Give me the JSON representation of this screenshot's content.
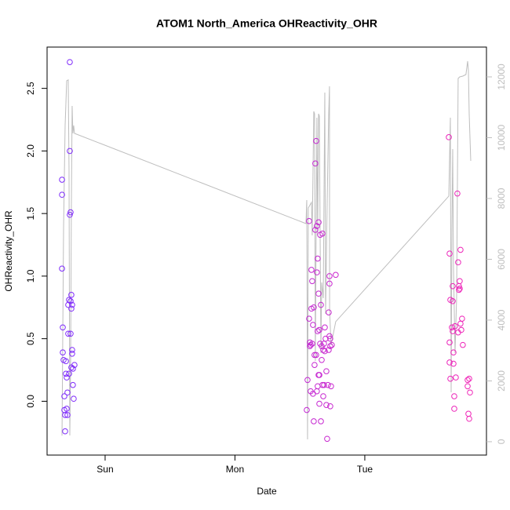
{
  "chart_data": {
    "type": "scatter",
    "title": "ATOM1 North_America OHReactivity_OHR",
    "xlabel": "Date",
    "ylabel": "OHReactivity_OHR",
    "xlim": [
      -0.447,
      2.937
    ],
    "xticks": [
      {
        "value": 0,
        "label": "Sun"
      },
      {
        "value": 1,
        "label": "Mon"
      },
      {
        "value": 2,
        "label": "Tue"
      }
    ],
    "ylim": [
      -0.43,
      2.83
    ],
    "yticks": [
      {
        "value": 0,
        "label": "0.0"
      },
      0.5,
      {
        "value": 1,
        "label": "1.0"
      },
      1.5,
      {
        "value": 2,
        "label": "2.0"
      },
      2.5
    ],
    "y2lim": [
      -440,
      12980
    ],
    "y2ticks": [
      0,
      2000,
      4000,
      6000,
      8000,
      10000,
      12000
    ],
    "y2_color": "#bebebe",
    "color_scale": [
      "#7a2cff",
      "#f524b4"
    ],
    "series": [
      {
        "type": "scatter",
        "x": [
          -0.332,
          -0.332,
          -0.332,
          -0.326,
          -0.326,
          -0.32,
          -0.314,
          -0.314,
          -0.308,
          -0.308,
          -0.302,
          -0.302,
          -0.296,
          -0.296,
          -0.29,
          -0.29,
          -0.284,
          -0.284,
          -0.278,
          -0.278,
          -0.272,
          -0.272,
          -0.272,
          -0.266,
          -0.266,
          -0.266,
          -0.26,
          -0.26,
          -0.26,
          -0.254,
          -0.254,
          -0.254,
          -0.248,
          -0.248,
          -0.242,
          -0.236,
          1.553,
          1.559,
          1.571,
          1.571,
          1.577,
          1.577,
          1.583,
          1.583,
          1.589,
          1.589,
          1.595,
          1.595,
          1.601,
          1.601,
          1.607,
          1.607,
          1.613,
          1.613,
          1.619,
          1.619,
          1.625,
          1.625,
          1.631,
          1.631,
          1.631,
          1.637,
          1.637,
          1.637,
          1.644,
          1.644,
          1.644,
          1.65,
          1.65,
          1.65,
          1.656,
          1.656,
          1.662,
          1.662,
          1.668,
          1.668,
          1.674,
          1.674,
          1.68,
          1.68,
          1.686,
          1.686,
          1.692,
          1.692,
          1.698,
          1.704,
          1.704,
          1.71,
          1.716,
          1.722,
          1.722,
          1.728,
          1.728,
          1.728,
          1.734,
          1.734,
          1.74,
          1.734,
          1.776,
          1.746,
          2.647,
          2.653,
          2.653,
          2.653,
          2.659,
          2.659,
          2.671,
          2.677,
          2.677,
          2.677,
          2.683,
          2.683,
          2.689,
          2.689,
          2.695,
          2.701,
          2.713,
          2.719,
          2.719,
          2.725,
          2.725,
          2.731,
          2.731,
          2.737,
          2.737,
          2.743,
          2.749,
          2.755,
          2.792,
          2.792,
          2.798,
          2.804,
          2.804,
          2.81
        ],
        "values": [
          1.77,
          1.65,
          1.06,
          0.59,
          0.39,
          0.33,
          -0.07,
          0.04,
          -0.11,
          -0.24,
          0.32,
          0.22,
          0.19,
          -0.06,
          0.07,
          -0.11,
          0.77,
          0.54,
          0.22,
          0.81,
          2.71,
          2.0,
          1.49,
          1.51,
          0.54,
          0.8,
          0.85,
          0.27,
          0.74,
          0.41,
          0.77,
          0.38,
          0.13,
          0.26,
          0.02,
          0.29,
          -0.07,
          0.17,
          1.44,
          0.66,
          0.47,
          0.44,
          0.08,
          0.45,
          0.74,
          1.05,
          0.96,
          0.46,
          0.61,
          0.06,
          -0.16,
          0.75,
          0.37,
          0.29,
          1.37,
          1.9,
          2.08,
          0.37,
          1.4,
          1.03,
          0.08,
          1.14,
          0.56,
          0.12,
          1.43,
          0.86,
          0.21,
          0.21,
          0.57,
          -0.02,
          1.33,
          0.46,
          -0.16,
          0.77,
          0.44,
          0.33,
          0.13,
          1.34,
          0.41,
          0.04,
          0.13,
          0.46,
          0.59,
          0.4,
          0.5,
          -0.03,
          0.24,
          -0.3,
          0.13,
          0.71,
          0.41,
          1.0,
          0.94,
          0.52,
          0.44,
          0.5,
          0.12,
          -0.04,
          1.01,
          0.45,
          2.11,
          0.31,
          1.18,
          0.47,
          0.81,
          0.18,
          0.59,
          0.8,
          0.92,
          0.56,
          0.3,
          0.39,
          0.04,
          -0.06,
          0.6,
          0.19,
          1.66,
          0.55,
          1.11,
          0.92,
          0.89,
          0.96,
          0.9,
          1.21,
          0.62,
          0.57,
          0.66,
          0.45,
          0.17,
          0.12,
          -0.1,
          -0.14,
          0.18,
          0.07
        ]
      },
      {
        "type": "line",
        "axis": "y2",
        "color": "#bebebe",
        "x": [
          -0.332,
          -0.32,
          -0.308,
          -0.296,
          -0.284,
          -0.278,
          -0.272,
          -0.266,
          -0.26,
          -0.254,
          -0.248,
          -0.242,
          -0.236,
          1.547,
          1.553,
          1.559,
          1.565,
          1.589,
          1.595,
          1.607,
          1.613,
          1.619,
          1.631,
          1.637,
          1.644,
          1.65,
          1.662,
          1.668,
          1.68,
          1.692,
          1.698,
          1.71,
          1.722,
          1.728,
          1.729,
          1.74,
          1.776,
          2.647,
          2.659,
          2.665,
          2.671,
          2.677,
          2.683,
          2.695,
          2.707,
          2.719,
          2.731,
          2.755,
          2.779,
          2.792,
          2.798,
          2.804,
          2.816
        ],
        "values": [
          200,
          7045,
          10400,
          11871,
          11900,
          8981,
          206,
          2400,
          7690,
          11045,
          10142,
          10400,
          10142,
          7174,
          7948,
          77,
          7690,
          7871,
          6787,
          10865,
          10787,
          2658,
          10658,
          6787,
          10787,
          10709,
          2916,
          5239,
          4722,
          11484,
          4206,
          7819,
          10787,
          11690,
          4335,
          3174,
          3948,
          8077,
          10658,
          1626,
          7045,
          9626,
          5755,
          2916,
          4722,
          11948,
          12000,
          12025,
          12077,
          12516,
          12206,
          10787,
          9239
        ]
      }
    ]
  }
}
